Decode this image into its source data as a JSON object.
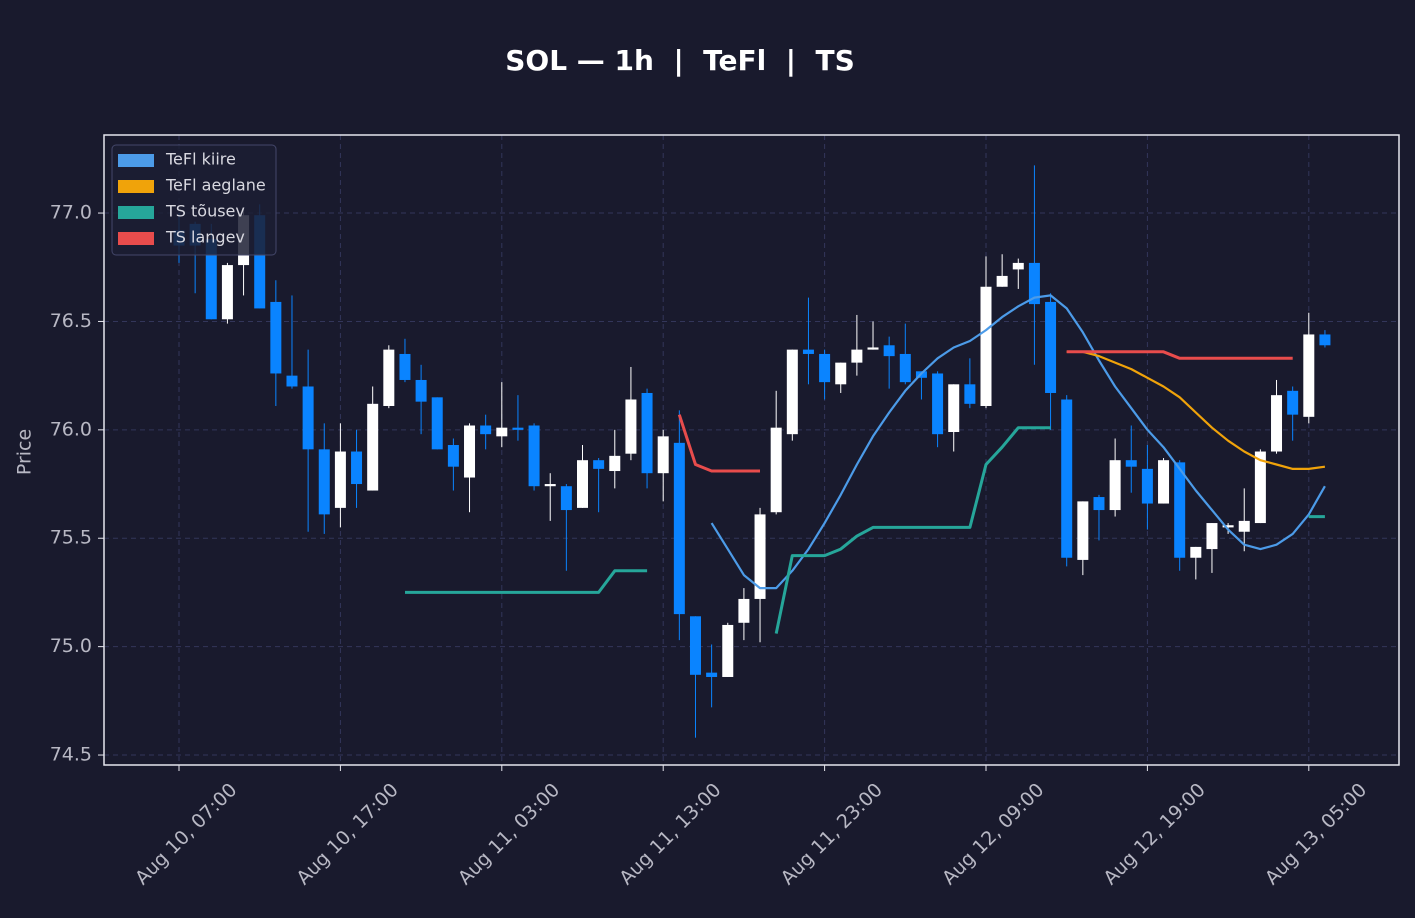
{
  "chart_data": {
    "type": "candlestick",
    "title": "SOL — 1h  |  TeFl  |  TS",
    "ylabel": "Price",
    "categories": [
      "Aug 10, 07:00",
      "Aug 10, 08:00",
      "Aug 10, 09:00",
      "Aug 10, 10:00",
      "Aug 10, 11:00",
      "Aug 10, 12:00",
      "Aug 10, 13:00",
      "Aug 10, 14:00",
      "Aug 10, 15:00",
      "Aug 10, 16:00",
      "Aug 10, 17:00",
      "Aug 10, 18:00",
      "Aug 10, 19:00",
      "Aug 10, 20:00",
      "Aug 10, 21:00",
      "Aug 10, 22:00",
      "Aug 10, 23:00",
      "Aug 11, 00:00",
      "Aug 11, 01:00",
      "Aug 11, 02:00",
      "Aug 11, 03:00",
      "Aug 11, 04:00",
      "Aug 11, 05:00",
      "Aug 11, 06:00",
      "Aug 11, 07:00",
      "Aug 11, 08:00",
      "Aug 11, 09:00",
      "Aug 11, 10:00",
      "Aug 11, 11:00",
      "Aug 11, 12:00",
      "Aug 11, 13:00",
      "Aug 11, 14:00",
      "Aug 11, 15:00",
      "Aug 11, 16:00",
      "Aug 11, 17:00",
      "Aug 11, 18:00",
      "Aug 11, 19:00",
      "Aug 11, 20:00",
      "Aug 11, 21:00",
      "Aug 11, 22:00",
      "Aug 11, 23:00",
      "Aug 12, 00:00",
      "Aug 12, 01:00",
      "Aug 12, 02:00",
      "Aug 12, 03:00",
      "Aug 12, 04:00",
      "Aug 12, 05:00",
      "Aug 12, 06:00",
      "Aug 12, 07:00",
      "Aug 12, 08:00",
      "Aug 12, 09:00",
      "Aug 12, 10:00",
      "Aug 12, 11:00",
      "Aug 12, 12:00",
      "Aug 12, 13:00",
      "Aug 12, 14:00",
      "Aug 12, 15:00",
      "Aug 12, 16:00",
      "Aug 12, 17:00",
      "Aug 12, 18:00",
      "Aug 12, 19:00",
      "Aug 12, 20:00",
      "Aug 12, 21:00",
      "Aug 12, 22:00",
      "Aug 12, 23:00",
      "Aug 13, 00:00",
      "Aug 13, 01:00",
      "Aug 13, 02:00",
      "Aug 13, 03:00",
      "Aug 13, 04:00",
      "Aug 13, 05:00",
      "Aug 13, 06:00"
    ],
    "open": [
      76.92,
      76.95,
      76.88,
      76.51,
      76.76,
      76.99,
      76.59,
      76.25,
      76.2,
      75.91,
      75.64,
      75.9,
      75.72,
      76.11,
      76.35,
      76.23,
      76.15,
      75.93,
      75.78,
      76.02,
      75.97,
      76.01,
      76.02,
      75.74,
      75.74,
      75.64,
      75.86,
      75.81,
      75.89,
      76.17,
      75.8,
      75.94,
      75.14,
      74.88,
      74.86,
      75.11,
      75.22,
      75.62,
      75.98,
      76.37,
      76.35,
      76.21,
      76.31,
      76.37,
      76.39,
      76.35,
      76.27,
      76.26,
      75.99,
      76.21,
      76.11,
      76.66,
      76.74,
      76.77,
      76.59,
      76.14,
      75.4,
      75.69,
      75.63,
      75.86,
      75.82,
      75.66,
      75.85,
      75.41,
      75.45,
      75.55,
      75.53,
      75.57,
      75.9,
      76.18,
      76.06,
      76.44
    ],
    "high": [
      77.0,
      76.96,
      76.95,
      76.77,
      77.02,
      77.04,
      76.69,
      76.62,
      76.37,
      76.03,
      76.03,
      76.0,
      76.2,
      76.39,
      76.42,
      76.3,
      76.15,
      75.96,
      76.03,
      76.07,
      76.22,
      76.16,
      76.03,
      75.8,
      75.75,
      75.93,
      75.87,
      76.0,
      76.29,
      76.19,
      76.0,
      76.09,
      75.14,
      75.01,
      75.11,
      75.27,
      75.64,
      76.18,
      76.37,
      76.61,
      76.37,
      76.31,
      76.53,
      76.5,
      76.43,
      76.49,
      76.27,
      76.27,
      76.21,
      76.33,
      76.8,
      76.81,
      76.79,
      77.22,
      76.63,
      76.16,
      75.67,
      75.7,
      75.96,
      76.02,
      75.93,
      75.87,
      75.86,
      75.46,
      75.57,
      75.57,
      75.73,
      75.91,
      76.23,
      76.2,
      76.54,
      76.46
    ],
    "low": [
      76.77,
      76.63,
      76.51,
      76.49,
      76.62,
      76.56,
      76.11,
      76.19,
      75.53,
      75.52,
      75.55,
      75.64,
      75.72,
      76.1,
      76.22,
      75.98,
      75.91,
      75.72,
      75.62,
      75.91,
      75.92,
      75.95,
      75.72,
      75.58,
      75.35,
      75.64,
      75.62,
      75.73,
      75.86,
      75.73,
      75.67,
      75.03,
      74.58,
      74.72,
      74.86,
      75.03,
      75.02,
      75.61,
      75.95,
      76.21,
      76.14,
      76.17,
      76.25,
      76.37,
      76.19,
      76.21,
      76.14,
      75.92,
      75.9,
      76.1,
      76.1,
      76.66,
      76.65,
      76.3,
      76.0,
      75.37,
      75.33,
      75.49,
      75.6,
      75.71,
      75.54,
      75.66,
      75.35,
      75.31,
      75.34,
      75.52,
      75.44,
      75.57,
      75.89,
      75.95,
      76.03,
      76.38
    ],
    "close": [
      76.85,
      76.85,
      76.51,
      76.76,
      76.99,
      76.56,
      76.26,
      76.2,
      75.91,
      75.61,
      75.9,
      75.75,
      76.12,
      76.37,
      76.23,
      76.13,
      75.91,
      75.83,
      76.02,
      75.98,
      76.01,
      76.0,
      75.74,
      75.75,
      75.63,
      75.86,
      75.82,
      75.88,
      76.14,
      75.8,
      75.97,
      75.15,
      74.87,
      74.86,
      75.1,
      75.22,
      75.61,
      76.01,
      76.37,
      76.35,
      76.22,
      76.31,
      76.37,
      76.38,
      76.34,
      76.22,
      76.24,
      75.98,
      76.21,
      76.12,
      76.66,
      76.71,
      76.77,
      76.58,
      76.17,
      75.41,
      75.67,
      75.63,
      75.86,
      75.83,
      75.66,
      75.86,
      75.41,
      75.46,
      75.57,
      75.56,
      75.58,
      75.9,
      76.16,
      76.07,
      76.44,
      76.39
    ],
    "up_color": "#ffffff",
    "down_color": "#0a84ff",
    "series": [
      {
        "name": "TeFl kiire",
        "color": "#4c9be8",
        "values": [
          null,
          null,
          null,
          null,
          null,
          null,
          null,
          null,
          null,
          null,
          null,
          null,
          null,
          null,
          null,
          null,
          null,
          null,
          null,
          null,
          null,
          null,
          null,
          null,
          null,
          null,
          null,
          null,
          null,
          null,
          null,
          null,
          null,
          75.57,
          75.45,
          75.33,
          75.27,
          75.27,
          75.35,
          75.45,
          75.57,
          75.7,
          75.84,
          75.97,
          76.08,
          76.18,
          76.26,
          76.33,
          76.38,
          76.41,
          76.46,
          76.52,
          76.57,
          76.61,
          76.62,
          76.56,
          76.45,
          76.32,
          76.2,
          76.1,
          76.0,
          75.92,
          75.82,
          75.72,
          75.63,
          75.54,
          75.47,
          75.45,
          75.47,
          75.52,
          75.61,
          75.74
        ]
      },
      {
        "name": "TeFl aeglane",
        "color": "#f0a30a",
        "values": [
          null,
          null,
          null,
          null,
          null,
          null,
          null,
          null,
          null,
          null,
          null,
          null,
          null,
          null,
          null,
          null,
          null,
          null,
          null,
          null,
          null,
          null,
          null,
          null,
          null,
          null,
          null,
          null,
          null,
          null,
          null,
          null,
          null,
          null,
          null,
          null,
          null,
          null,
          null,
          null,
          null,
          null,
          null,
          null,
          null,
          null,
          null,
          null,
          null,
          null,
          null,
          null,
          null,
          null,
          null,
          76.36,
          76.36,
          76.34,
          76.31,
          76.28,
          76.24,
          76.2,
          76.15,
          76.08,
          76.01,
          75.95,
          75.9,
          75.86,
          75.84,
          75.82,
          75.82,
          75.83
        ]
      },
      {
        "name": "TS tõusev",
        "color": "#26a69a",
        "values": [
          null,
          null,
          null,
          null,
          null,
          null,
          null,
          null,
          null,
          null,
          null,
          null,
          null,
          null,
          75.25,
          75.25,
          75.25,
          75.25,
          75.25,
          75.25,
          75.25,
          75.25,
          75.25,
          75.25,
          75.25,
          75.25,
          75.25,
          75.35,
          75.35,
          75.35,
          null,
          null,
          null,
          null,
          null,
          null,
          null,
          75.06,
          75.42,
          75.42,
          75.42,
          75.45,
          75.51,
          75.55,
          75.55,
          75.55,
          75.55,
          75.55,
          75.55,
          75.55,
          75.84,
          75.92,
          76.01,
          76.01,
          76.01,
          null,
          null,
          null,
          null,
          null,
          null,
          null,
          null,
          null,
          null,
          null,
          null,
          null,
          null,
          null,
          75.6,
          75.6
        ]
      },
      {
        "name": "TS langev",
        "color": "#e84c4c",
        "values": [
          null,
          null,
          null,
          null,
          null,
          null,
          null,
          null,
          null,
          null,
          null,
          null,
          null,
          null,
          null,
          null,
          null,
          null,
          null,
          null,
          null,
          null,
          null,
          null,
          null,
          null,
          null,
          null,
          null,
          null,
          null,
          76.07,
          75.84,
          75.81,
          75.81,
          75.81,
          75.81,
          null,
          null,
          null,
          null,
          null,
          null,
          null,
          null,
          null,
          null,
          null,
          null,
          null,
          null,
          null,
          null,
          null,
          null,
          76.36,
          76.36,
          76.36,
          76.36,
          76.36,
          76.36,
          76.36,
          76.33,
          76.33,
          76.33,
          76.33,
          76.33,
          76.33,
          76.33,
          76.33,
          null,
          null
        ]
      }
    ],
    "xticks": [
      "Aug 10, 07:00",
      "Aug 10, 17:00",
      "Aug 11, 03:00",
      "Aug 11, 13:00",
      "Aug 11, 23:00",
      "Aug 12, 09:00",
      "Aug 12, 19:00",
      "Aug 13, 05:00"
    ],
    "ylim": [
      74.454,
      77.36
    ],
    "yticks": [
      74.5,
      {
        "value": 75.0,
        "label": "75.0"
      },
      75.5,
      {
        "value": 76.0,
        "label": "76.0"
      },
      76.5,
      {
        "value": 77.0,
        "label": "77.0"
      }
    ],
    "grid": true,
    "legend": "upper left"
  }
}
